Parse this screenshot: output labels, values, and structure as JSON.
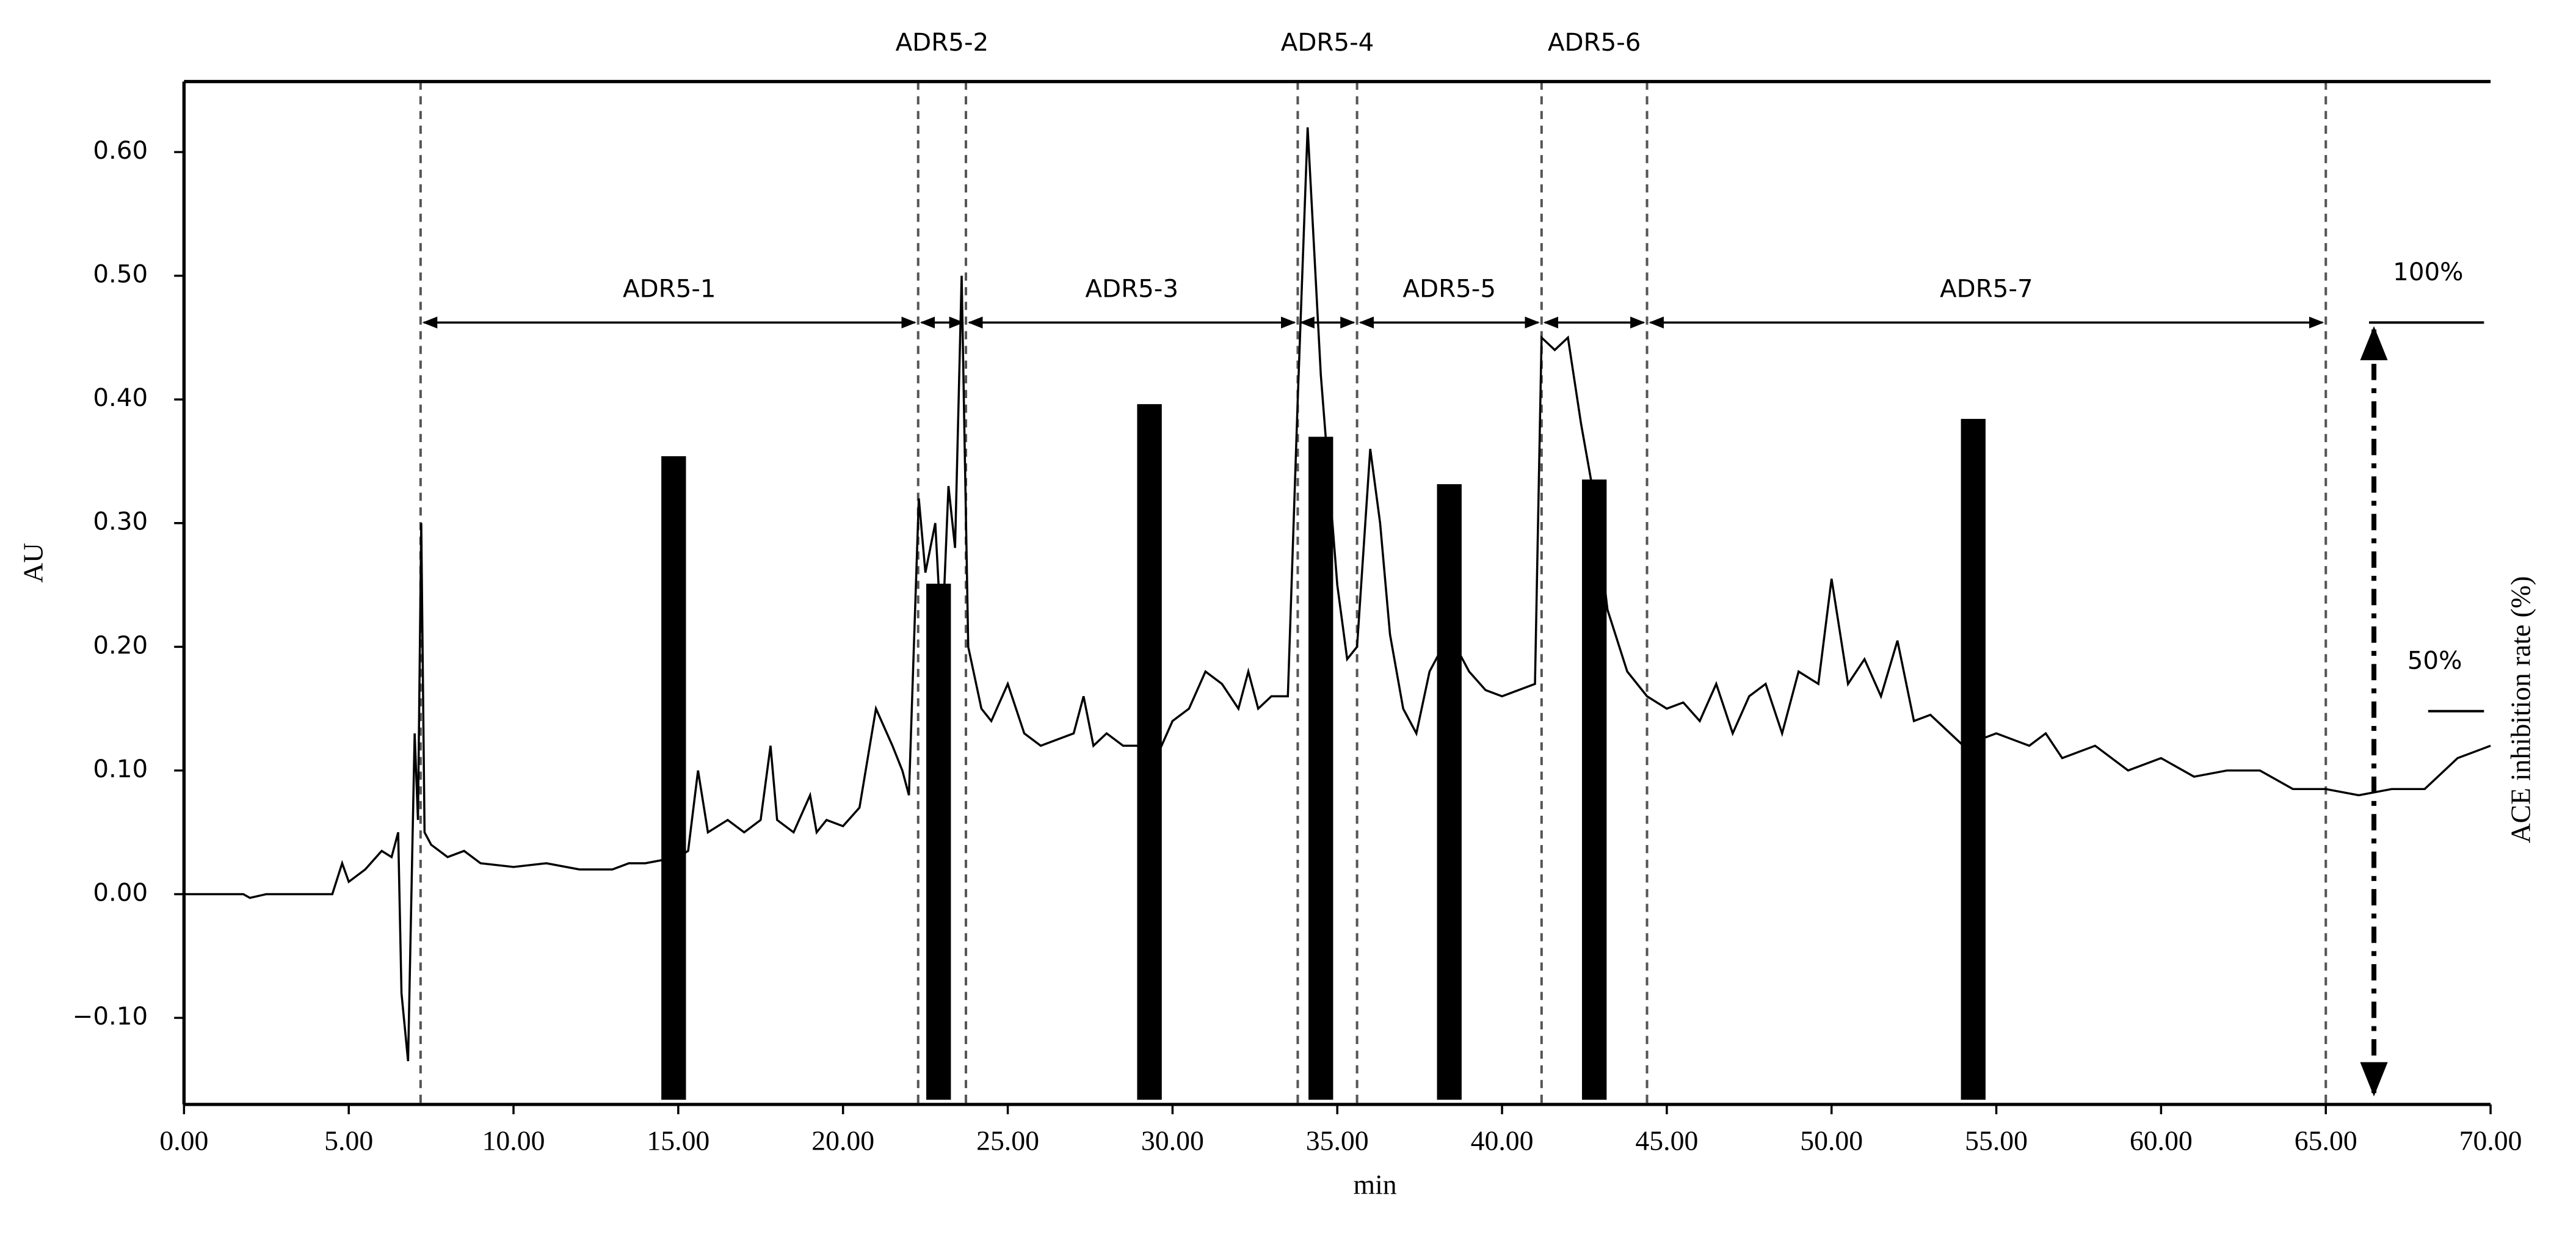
{
  "chart_data": {
    "type": "line",
    "xlabel": "min",
    "ylabel": "AU",
    "y2label": "ACE inhibition rate (%)",
    "xlim": [
      0,
      70
    ],
    "xticks": [
      {
        "value": 0,
        "label": "0.00"
      },
      {
        "value": 5,
        "label": "5.00"
      },
      {
        "value": 10,
        "label": "10.00"
      },
      {
        "value": 15,
        "label": "15.00"
      },
      {
        "value": 20,
        "label": "20.00"
      },
      {
        "value": 25,
        "label": "25.00"
      },
      {
        "value": 30,
        "label": "30.00"
      },
      {
        "value": 35,
        "label": "35.00"
      },
      {
        "value": 40,
        "label": "40.00"
      },
      {
        "value": 45,
        "label": "45.00"
      },
      {
        "value": 50,
        "label": "50.00"
      },
      {
        "value": 55,
        "label": "55.00"
      },
      {
        "value": 60,
        "label": "60.00"
      },
      {
        "value": 65,
        "label": "65.00"
      },
      {
        "value": 70,
        "label": "70.00"
      }
    ],
    "ylim": [
      -0.17,
      0.657
    ],
    "yticks": [
      {
        "value": -0.1,
        "label": "−0.10"
      },
      {
        "value": 0,
        "label": "0.00"
      },
      {
        "value": 0.1,
        "label": "0.10"
      },
      {
        "value": 0.2,
        "label": "0.20"
      },
      {
        "value": 0.3,
        "label": "0.30"
      },
      {
        "value": 0.4,
        "label": "0.40"
      },
      {
        "value": 0.5,
        "label": "0.50"
      },
      {
        "value": 0.6,
        "label": "0.60"
      }
    ],
    "y2lim": [
      -0.6,
      131
    ],
    "y2ticks": [
      {
        "value": 50,
        "label": "50%"
      },
      {
        "value": 100,
        "label": "100%"
      }
    ],
    "color": "#000000",
    "x": [
      0,
      1.8,
      2,
      2.5,
      4.5,
      4.8,
      5,
      5.5,
      6,
      6.3,
      6.5,
      6.6,
      6.8,
      7.0,
      7.1,
      7.2,
      7.3,
      7.5,
      8,
      8.5,
      9,
      10,
      11,
      12,
      13,
      13.5,
      14,
      15,
      15.3,
      15.6,
      15.9,
      16.5,
      17,
      17.5,
      17.8,
      18,
      18.5,
      19,
      19.2,
      19.5,
      20,
      20.5,
      21,
      21.5,
      21.8,
      22,
      22.3,
      22.5,
      22.8,
      23.0,
      23.2,
      23.4,
      23.6,
      23.8,
      24.2,
      24.5,
      25,
      25.5,
      26,
      26.5,
      27,
      27.3,
      27.6,
      28,
      28.5,
      29,
      29.5,
      30,
      30.5,
      31,
      31.5,
      32,
      32.3,
      32.6,
      33,
      33.5,
      33.8,
      34.1,
      34.5,
      35,
      35.3,
      35.6,
      36,
      36.3,
      36.6,
      37,
      37.4,
      37.8,
      38.2,
      38.6,
      39,
      39.5,
      40,
      41,
      41.2,
      41.6,
      42,
      42.4,
      42.8,
      43.2,
      43.8,
      44.4,
      45,
      45.5,
      46,
      46.5,
      47,
      47.5,
      48,
      48.5,
      49,
      49.6,
      50,
      50.5,
      51,
      51.5,
      52,
      52.5,
      53,
      54,
      55,
      56,
      56.5,
      57,
      58,
      59,
      60,
      61,
      62,
      63,
      64,
      65,
      66,
      67,
      68,
      69,
      70
    ],
    "values": [
      0,
      0,
      -0.003,
      0,
      0,
      0.025,
      0.01,
      0.02,
      0.035,
      0.03,
      0.05,
      -0.08,
      -0.135,
      0.13,
      0.06,
      0.3,
      0.05,
      0.04,
      0.03,
      0.035,
      0.025,
      0.022,
      0.025,
      0.02,
      0.02,
      0.025,
      0.025,
      0.03,
      0.035,
      0.1,
      0.05,
      0.06,
      0.05,
      0.06,
      0.12,
      0.06,
      0.05,
      0.08,
      0.05,
      0.06,
      0.055,
      0.07,
      0.15,
      0.12,
      0.1,
      0.08,
      0.32,
      0.26,
      0.3,
      0.2,
      0.33,
      0.28,
      0.5,
      0.2,
      0.15,
      0.14,
      0.17,
      0.13,
      0.12,
      0.125,
      0.13,
      0.16,
      0.12,
      0.13,
      0.12,
      0.12,
      0.11,
      0.14,
      0.15,
      0.18,
      0.17,
      0.15,
      0.18,
      0.15,
      0.16,
      0.16,
      0.4,
      0.62,
      0.42,
      0.25,
      0.19,
      0.2,
      0.36,
      0.3,
      0.21,
      0.15,
      0.13,
      0.18,
      0.2,
      0.2,
      0.18,
      0.165,
      0.16,
      0.17,
      0.45,
      0.44,
      0.45,
      0.38,
      0.32,
      0.23,
      0.18,
      0.16,
      0.15,
      0.155,
      0.14,
      0.17,
      0.13,
      0.16,
      0.17,
      0.13,
      0.18,
      0.17,
      0.255,
      0.17,
      0.19,
      0.16,
      0.205,
      0.14,
      0.145,
      0.12,
      0.13,
      0.12,
      0.13,
      0.11,
      0.12,
      0.1,
      0.11,
      0.095,
      0.1,
      0.1,
      0.085,
      0.085,
      0.08,
      0.085,
      0.085,
      0.11,
      0.12
    ],
    "bars": {
      "type": "bar",
      "axis": "y2",
      "color": "#000000",
      "x": [
        14.86,
        22.9,
        29.3,
        34.5,
        38.4,
        42.8,
        54.3
      ],
      "values": [
        82.8,
        66.4,
        89.5,
        85.3,
        79.2,
        79.8,
        87.6
      ]
    },
    "boundaries": [
      7.18,
      22.28,
      23.73,
      33.8,
      35.6,
      41.2,
      44.4,
      65.0
    ],
    "fractions": [
      "ADR5-1",
      "ADR5-2",
      "ADR5-3",
      "ADR5-4",
      "ADR5-5",
      "ADR5-6",
      "ADR5-7"
    ]
  }
}
